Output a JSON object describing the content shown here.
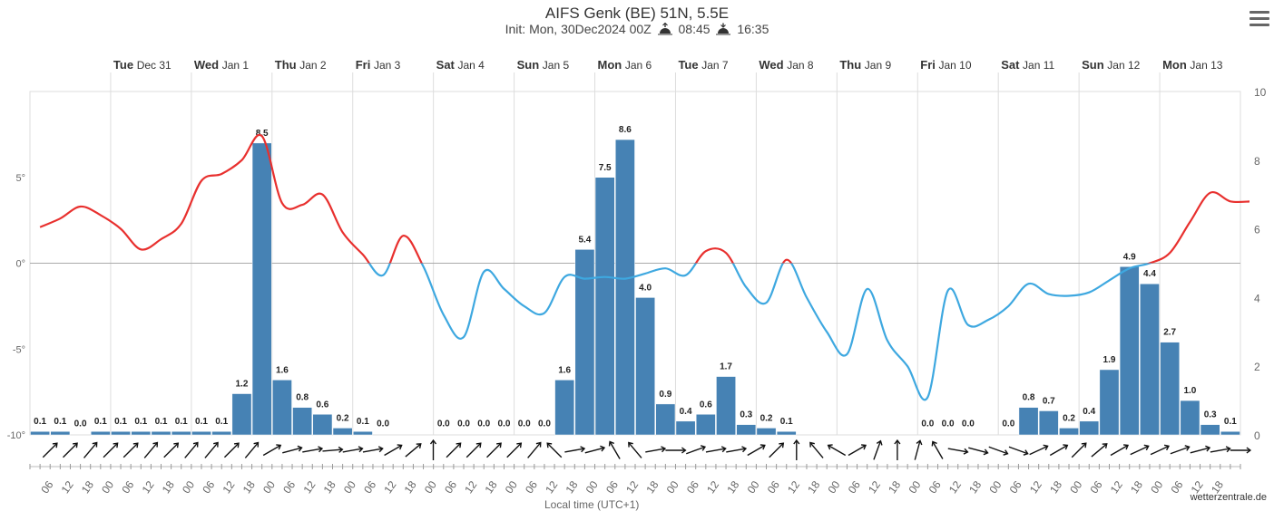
{
  "title": "AIFS Genk (BE) 51N, 5.5E",
  "subtitle": {
    "init": "Init: Mon, 30Dec2024 00Z",
    "sunrise": "08:45",
    "sunset": "16:35",
    "sunrise_icon": "sunrise-icon",
    "sunset_icon": "sunset-icon"
  },
  "menu_icon": "hamburger-menu-icon",
  "credit": "wetterzentrale.de",
  "x_axis_title": "Local time (UTC+1)",
  "chart_data": {
    "type": "bar+line",
    "colors": {
      "bar": "#4682b4",
      "temp_above_zero": "#e8302e",
      "temp_below_zero": "#3ea8e0",
      "grid": "#dddddd",
      "zero_line": "#aaaaaa"
    },
    "day_labels": [
      {
        "day": "Tue",
        "date": "Dec 31",
        "hour": 24
      },
      {
        "day": "Wed",
        "date": "Jan 1",
        "hour": 48
      },
      {
        "day": "Thu",
        "date": "Jan 2",
        "hour": 72
      },
      {
        "day": "Fri",
        "date": "Jan 3",
        "hour": 96
      },
      {
        "day": "Sat",
        "date": "Jan 4",
        "hour": 120
      },
      {
        "day": "Sun",
        "date": "Jan 5",
        "hour": 144
      },
      {
        "day": "Mon",
        "date": "Jan 6",
        "hour": 168
      },
      {
        "day": "Tue",
        "date": "Jan 7",
        "hour": 192
      },
      {
        "day": "Wed",
        "date": "Jan 8",
        "hour": 216
      },
      {
        "day": "Thu",
        "date": "Jan 9",
        "hour": 240
      },
      {
        "day": "Fri",
        "date": "Jan 10",
        "hour": 264
      },
      {
        "day": "Sat",
        "date": "Jan 11",
        "hour": 288
      },
      {
        "day": "Sun",
        "date": "Jan 12",
        "hour": 312
      },
      {
        "day": "Mon",
        "date": "Jan 13",
        "hour": 336
      }
    ],
    "x_range_hours": [
      0,
      360
    ],
    "x_tick_labels": [
      "06",
      "12",
      "18",
      "00",
      "06",
      "12",
      "18",
      "00",
      "06",
      "12",
      "18",
      "00",
      "06",
      "12",
      "18",
      "00",
      "06",
      "12",
      "18",
      "00",
      "06",
      "12",
      "18",
      "00",
      "06",
      "12",
      "18",
      "00",
      "06",
      "12",
      "18",
      "00",
      "06",
      "12",
      "18",
      "00",
      "06",
      "12",
      "18",
      "00",
      "06",
      "12",
      "18",
      "00",
      "06",
      "12",
      "18",
      "00",
      "06",
      "12",
      "18",
      "00",
      "06",
      "12",
      "18",
      "00",
      "06",
      "12",
      "18"
    ],
    "y_left": {
      "ticks": [
        "-10°",
        "-5°",
        "0°",
        "5°"
      ],
      "values": [
        -10,
        -5,
        0,
        5
      ],
      "range": [
        -10,
        10
      ]
    },
    "y_right": {
      "ticks": [
        "0",
        "2",
        "4",
        "6",
        "8",
        "10"
      ],
      "values": [
        0,
        2,
        4,
        6,
        8,
        10
      ],
      "range": [
        0,
        10
      ]
    },
    "precip_bars": [
      {
        "start": 6,
        "value": 0.1,
        "label": "0.1"
      },
      {
        "start": 12,
        "value": 0.1,
        "label": "0.1"
      },
      {
        "start": 18,
        "value": 0.0,
        "label": "0.0"
      },
      {
        "start": 24,
        "value": 0.1,
        "label": "0.1"
      },
      {
        "start": 30,
        "value": 0.1,
        "label": "0.1"
      },
      {
        "start": 36,
        "value": 0.1,
        "label": "0.1"
      },
      {
        "start": 42,
        "value": 0.1,
        "label": "0.1"
      },
      {
        "start": 48,
        "value": 0.1,
        "label": "0.1"
      },
      {
        "start": 54,
        "value": 0.1,
        "label": "0.1"
      },
      {
        "start": 60,
        "value": 0.1,
        "label": "0.1"
      },
      {
        "start": 66,
        "value": 1.2,
        "label": "1.2"
      },
      {
        "start": 72,
        "value": 8.5,
        "label": "8.5"
      },
      {
        "start": 78,
        "value": 1.6,
        "label": "1.6"
      },
      {
        "start": 84,
        "value": 0.8,
        "label": "0.8"
      },
      {
        "start": 90,
        "value": 0.6,
        "label": "0.6"
      },
      {
        "start": 96,
        "value": 0.2,
        "label": "0.2"
      },
      {
        "start": 102,
        "value": 0.1,
        "label": "0.1"
      },
      {
        "start": 108,
        "value": 0.0,
        "label": "0.0"
      },
      {
        "start": 126,
        "value": 0.0,
        "label": "0.0"
      },
      {
        "start": 132,
        "value": 0.0,
        "label": "0.0"
      },
      {
        "start": 138,
        "value": 0.0,
        "label": "0.0"
      },
      {
        "start": 144,
        "value": 0.0,
        "label": "0.0"
      },
      {
        "start": 150,
        "value": 0.0,
        "label": "0.0"
      },
      {
        "start": 156,
        "value": 0.0,
        "label": "0.0"
      },
      {
        "start": 162,
        "value": 1.6,
        "label": "1.6"
      },
      {
        "start": 168,
        "value": 5.4,
        "label": "5.4"
      },
      {
        "start": 174,
        "value": 7.5,
        "label": "7.5"
      },
      {
        "start": 180,
        "value": 8.6,
        "label": "8.6"
      },
      {
        "start": 186,
        "value": 4.0,
        "label": "4.0"
      },
      {
        "start": 192,
        "value": 0.9,
        "label": "0.9"
      },
      {
        "start": 198,
        "value": 0.4,
        "label": "0.4"
      },
      {
        "start": 204,
        "value": 0.6,
        "label": "0.6"
      },
      {
        "start": 210,
        "value": 1.7,
        "label": "1.7"
      },
      {
        "start": 216,
        "value": 0.3,
        "label": "0.3"
      },
      {
        "start": 222,
        "value": 0.2,
        "label": "0.2"
      },
      {
        "start": 228,
        "value": 0.1,
        "label": "0.1"
      },
      {
        "start": 270,
        "value": 0.0,
        "label": "0.0"
      },
      {
        "start": 276,
        "value": 0.0,
        "label": "0.0"
      },
      {
        "start": 282,
        "value": 0.0,
        "label": "0.0"
      },
      {
        "start": 294,
        "value": 0.0,
        "label": "0.0"
      },
      {
        "start": 300,
        "value": 0.8,
        "label": "0.8"
      },
      {
        "start": 306,
        "value": 0.7,
        "label": "0.7"
      },
      {
        "start": 312,
        "value": 0.2,
        "label": "0.2"
      },
      {
        "start": 318,
        "value": 0.4,
        "label": "0.4"
      },
      {
        "start": 324,
        "value": 1.9,
        "label": "1.9"
      },
      {
        "start": 330,
        "value": 4.9,
        "label": "4.9"
      },
      {
        "start": 336,
        "value": 4.4,
        "label": "4.4"
      },
      {
        "start": 342,
        "value": 2.7,
        "label": "2.7"
      },
      {
        "start": 348,
        "value": 1.0,
        "label": "1.0"
      },
      {
        "start": 354,
        "value": 0.3,
        "label": "0.3"
      },
      {
        "start": 360,
        "value": 0.1,
        "label": "0.1"
      }
    ],
    "temperature": {
      "hours": [
        3,
        9,
        15,
        21,
        27,
        33,
        39,
        45,
        51,
        57,
        63,
        69,
        75,
        81,
        87,
        93,
        99,
        105,
        111,
        117,
        123,
        129,
        135,
        141,
        147,
        153,
        159,
        165,
        171,
        177,
        183,
        189,
        195,
        201,
        207,
        213,
        219,
        225,
        231,
        237,
        243,
        249,
        255,
        261,
        267,
        273,
        279,
        285,
        291,
        297,
        303,
        309,
        315,
        321,
        327,
        333,
        339,
        345,
        351,
        357,
        363
      ],
      "values": [
        2.1,
        2.6,
        3.3,
        2.8,
        2.0,
        0.8,
        1.4,
        2.3,
        4.8,
        5.2,
        6.0,
        7.4,
        3.5,
        3.4,
        4.0,
        1.8,
        0.5,
        -0.7,
        1.6,
        -0.2,
        -3.0,
        -4.3,
        -0.5,
        -1.5,
        -2.5,
        -2.9,
        -0.8,
        -0.9,
        -0.8,
        -0.9,
        -0.6,
        -0.3,
        -0.7,
        0.7,
        0.6,
        -1.4,
        -2.3,
        0.2,
        -2.0,
        -4.0,
        -5.3,
        -1.5,
        -4.5,
        -6.0,
        -7.8,
        -1.6,
        -3.6,
        -3.3,
        -2.5,
        -1.2,
        -1.8,
        -1.9,
        -1.7,
        -1.0,
        -0.3,
        0.0,
        0.6,
        2.4,
        4.1,
        3.6,
        3.6
      ]
    },
    "wind_directions_deg": [
      45,
      45,
      40,
      45,
      45,
      40,
      45,
      40,
      40,
      45,
      40,
      60,
      75,
      80,
      85,
      80,
      80,
      60,
      50,
      0,
      45,
      45,
      45,
      45,
      40,
      315,
      80,
      75,
      330,
      320,
      80,
      90,
      70,
      80,
      80,
      60,
      45,
      0,
      320,
      300,
      60,
      20,
      0,
      15,
      330,
      100,
      105,
      110,
      110,
      65,
      60,
      45,
      50,
      60,
      65,
      65,
      70,
      75,
      80,
      90
    ]
  }
}
